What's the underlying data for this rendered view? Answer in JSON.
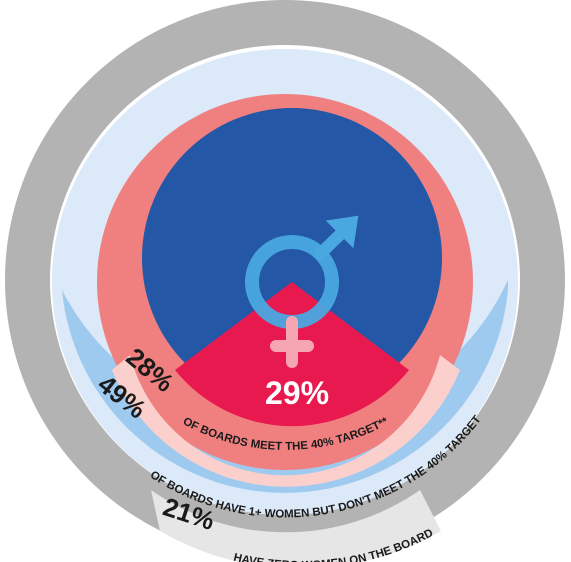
{
  "chart_data": {
    "type": "pie",
    "title": "",
    "segments": [
      {
        "name": "zero_women",
        "value": 21,
        "label_pct": "21%",
        "label_text": "HAVE ZERO WOMEN ON THE BOARD",
        "color": "#b3b3b3",
        "band_color": "#e6e6e6"
      },
      {
        "name": "some_women",
        "value": 49,
        "label_pct": "49%",
        "label_text": "OF BOARDS HAVE 1+ WOMEN BUT DON'T MEET THE 40% TARGET",
        "color": "#dbe9f8",
        "band_color": "#9ecaf0"
      },
      {
        "name": "meet_target",
        "value": 28,
        "label_pct": "28%",
        "label_text": "OF BOARDS MEET THE 40% TARGET**",
        "color": "#f08080",
        "band_color": "#fbd0cc"
      }
    ],
    "center": {
      "female_pct_label": "29%",
      "female_value": 29,
      "male_color": "#2457a6",
      "female_color": "#e8194f"
    }
  },
  "labels": {
    "pct_21": "21%",
    "text_21": "HAVE ZERO WOMEN ON THE BOARD",
    "pct_49": "49%",
    "text_49": "OF BOARDS HAVE 1+ WOMEN BUT DON'T MEET THE 40% TARGET",
    "pct_28": "28%",
    "text_28": "OF BOARDS MEET THE 40% TARGET**",
    "pct_29": "29%"
  },
  "icons": {
    "gender": "male-female-symbol-icon"
  }
}
